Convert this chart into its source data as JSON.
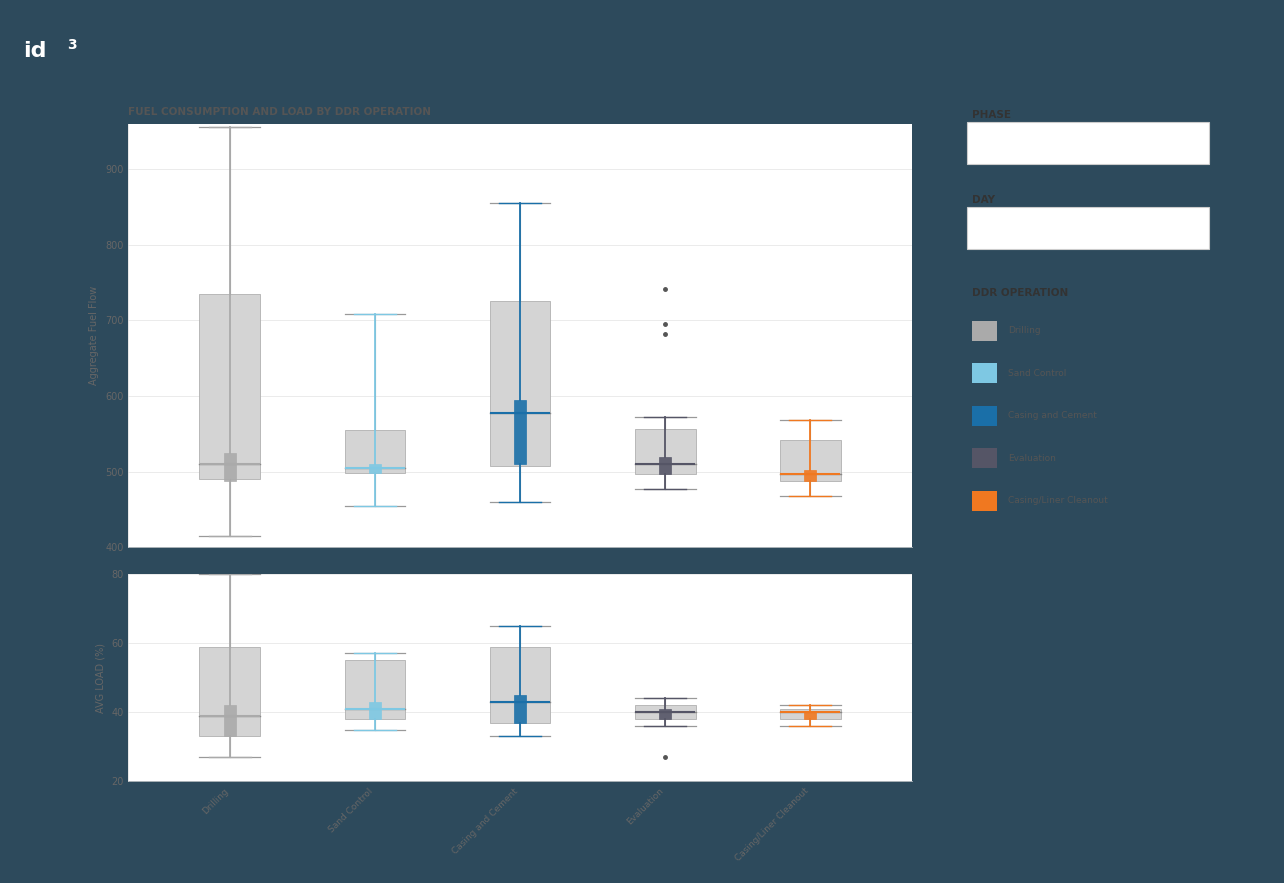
{
  "title": "FUEL CONSUMPTION AND LOAD BY DDR OPERATION",
  "background_outer": "#2d4a5c",
  "background_inner": "#ffffff",
  "background_panel_right": "#e5e5e5",
  "categories": [
    "Drilling",
    "Sand Control",
    "Casing and Cement",
    "Evaluation",
    "Casing/Liner Cleanout"
  ],
  "colors": {
    "Drilling": "#aaaaaa",
    "Sand Control": "#7ec8e3",
    "Casing and Cement": "#1a6fa8",
    "Evaluation": "#555566",
    "Casing/Liner Cleanout": "#f07820"
  },
  "fuel_flow": {
    "Drilling": {
      "wl": 415,
      "q1": 490,
      "med": 510,
      "q3": 735,
      "wh": 955,
      "q1c": 488,
      "q3c": 525,
      "medc": 510
    },
    "Sand Control": {
      "wl": 455,
      "q1": 498,
      "med": 505,
      "q3": 555,
      "wh": 708,
      "q1c": 498,
      "q3c": 510,
      "medc": 505
    },
    "Casing and Cement": {
      "wl": 460,
      "q1": 508,
      "med": 578,
      "q3": 725,
      "wh": 855,
      "q1c": 510,
      "q3c": 595,
      "medc": 578
    },
    "Evaluation": {
      "wl": 477,
      "q1": 497,
      "med": 510,
      "q3": 557,
      "wh": 572,
      "q1c": 497,
      "q3c": 520,
      "medc": 510,
      "outliers": [
        682,
        695,
        742
      ]
    },
    "Casing/Liner Cleanout": {
      "wl": 468,
      "q1": 488,
      "med": 497,
      "q3": 542,
      "wh": 568,
      "q1c": 488,
      "q3c": 502,
      "medc": 497
    }
  },
  "avg_load": {
    "Drilling": {
      "wl": 27,
      "q1": 33,
      "med": 39,
      "q3": 59,
      "wh": 80,
      "q1c": 33,
      "q3c": 42,
      "medc": 39
    },
    "Sand Control": {
      "wl": 35,
      "q1": 38,
      "med": 41,
      "q3": 55,
      "wh": 57,
      "q1c": 38,
      "q3c": 43,
      "medc": 41
    },
    "Casing and Cement": {
      "wl": 33,
      "q1": 37,
      "med": 43,
      "q3": 59,
      "wh": 65,
      "q1c": 37,
      "q3c": 45,
      "medc": 43
    },
    "Evaluation": {
      "wl": 36,
      "q1": 38,
      "med": 40,
      "q3": 42,
      "wh": 44,
      "q1c": 38,
      "q3c": 41,
      "medc": 40,
      "outliers": [
        27
      ]
    },
    "Casing/Liner Cleanout": {
      "wl": 36,
      "q1": 38,
      "med": 40,
      "q3": 41,
      "wh": 42,
      "q1c": 38,
      "q3c": 40.5,
      "medc": 40
    }
  },
  "fuel_ylim": [
    400,
    960
  ],
  "load_ylim": [
    20,
    80
  ],
  "fuel_yticks": [
    400,
    500,
    600,
    700,
    800,
    900
  ],
  "load_yticks": [
    20,
    40,
    60,
    80
  ],
  "fuel_ylabel": "Aggregate Fuel Flow",
  "load_ylabel": "AVG LOAD (%)"
}
